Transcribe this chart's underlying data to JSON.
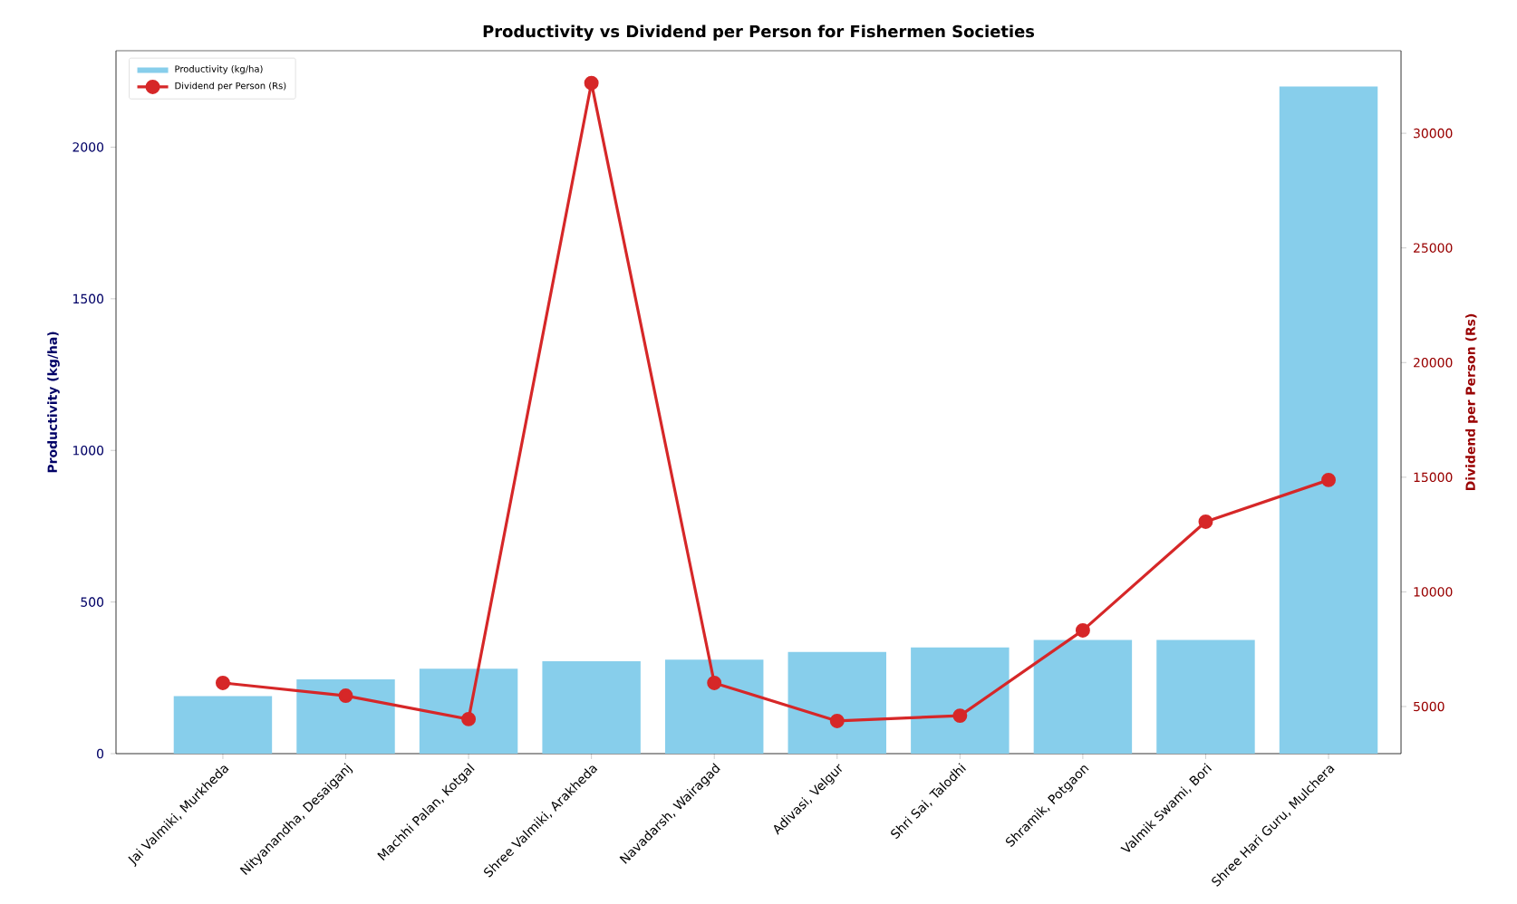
{
  "chart_data": {
    "type": "bar",
    "title": "Productivity vs Dividend per Person for Fishermen Societies",
    "ylabel": "Productivity (kg/ha)",
    "y2label": "Dividend per Person (Rs)",
    "categories": [
      "Jai Valmiki, Murkheda",
      "Nityanandha, Desaiganj",
      "Machhi Palan, Kotgal",
      "Shree Valmiki, Arakheda",
      "Navadarsh, Wairagad",
      "Adivasi, Velgur",
      "Shri Sai, Talodhi",
      "Shramik, Potgaon",
      "Valmik Swami, Bori",
      "Shree Hari Guru, Mulchera"
    ],
    "series": [
      {
        "name": "Productivity (kg/ha)",
        "color": "#87ceeb",
        "values": [
          190,
          245,
          280,
          305,
          310,
          335,
          350,
          375,
          375,
          2200
        ]
      },
      {
        "name": "Dividend per Person (Rs)",
        "type": "line",
        "axis": "y2",
        "color": "#d62728",
        "marker": "circle",
        "values": [
          6030,
          5470,
          4450,
          32190,
          6030,
          4370,
          4600,
          8320,
          13060,
          14880
        ]
      }
    ],
    "ylim": [
      0,
      2318
    ],
    "yticks": [
      0,
      500,
      1000,
      1500,
      2000
    ],
    "y2lim": [
      2945,
      33600
    ],
    "y2ticks": [
      5000,
      10000,
      15000,
      20000,
      25000,
      30000
    ],
    "legend": "top left"
  }
}
